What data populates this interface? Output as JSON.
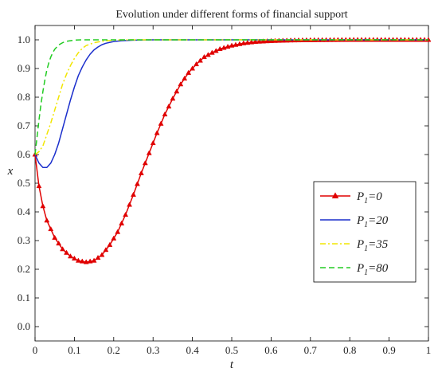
{
  "chart_data": {
    "type": "line",
    "title": "Evolution under different forms of financial support",
    "xlabel": "t",
    "ylabel": "x",
    "xlim": [
      0,
      1
    ],
    "ylim": [
      -0.05,
      1.05
    ],
    "xticks": [
      "0",
      "0.1",
      "0.2",
      "0.3",
      "0.4",
      "0.5",
      "0.6",
      "0.7",
      "0.8",
      "0.9",
      "1"
    ],
    "yticks": [
      "0.0",
      "0.1",
      "0.2",
      "0.3",
      "0.4",
      "0.5",
      "0.6",
      "0.7",
      "0.8",
      "0.9",
      "1.0"
    ],
    "legend_position": "right",
    "series": [
      {
        "legend_main": "P",
        "legend_sub": "1",
        "legend_rest": "=0",
        "color": "#e00000",
        "dash": "solid",
        "marker": "triangle",
        "x": [
          0,
          0.01,
          0.02,
          0.03,
          0.05,
          0.07,
          0.09,
          0.11,
          0.13,
          0.15,
          0.17,
          0.19,
          0.21,
          0.23,
          0.25,
          0.27,
          0.29,
          0.31,
          0.33,
          0.35,
          0.37,
          0.39,
          0.41,
          0.43,
          0.45,
          0.47,
          0.5,
          0.53,
          0.56,
          0.6,
          0.65,
          0.7,
          0.8,
          0.9,
          1.0
        ],
        "y": [
          0.6,
          0.49,
          0.42,
          0.37,
          0.31,
          0.27,
          0.245,
          0.23,
          0.225,
          0.23,
          0.25,
          0.285,
          0.33,
          0.39,
          0.46,
          0.535,
          0.605,
          0.675,
          0.74,
          0.795,
          0.845,
          0.885,
          0.915,
          0.94,
          0.955,
          0.968,
          0.98,
          0.988,
          0.993,
          0.996,
          0.998,
          0.999,
          1.0,
          1.0,
          1.0
        ]
      },
      {
        "legend_main": "P",
        "legend_sub": "1",
        "legend_rest": "=20",
        "color": "#1a2ecc",
        "dash": "solid",
        "marker": "none",
        "x": [
          0,
          0.01,
          0.02,
          0.03,
          0.04,
          0.05,
          0.06,
          0.07,
          0.08,
          0.09,
          0.1,
          0.11,
          0.12,
          0.13,
          0.14,
          0.15,
          0.16,
          0.17,
          0.18,
          0.2,
          0.22,
          0.25,
          0.3,
          0.4,
          1.0
        ],
        "y": [
          0.6,
          0.57,
          0.555,
          0.555,
          0.57,
          0.6,
          0.64,
          0.69,
          0.74,
          0.79,
          0.835,
          0.875,
          0.905,
          0.93,
          0.95,
          0.965,
          0.975,
          0.983,
          0.988,
          0.994,
          0.997,
          0.999,
          1.0,
          1.0,
          1.0
        ]
      },
      {
        "legend_main": "P",
        "legend_sub": "1",
        "legend_rest": "=35",
        "color": "#f2e600",
        "dash": "dashdot",
        "marker": "none",
        "x": [
          0,
          0.01,
          0.02,
          0.03,
          0.04,
          0.05,
          0.06,
          0.07,
          0.08,
          0.09,
          0.1,
          0.11,
          0.12,
          0.13,
          0.15,
          0.17,
          0.2,
          0.25,
          1.0
        ],
        "y": [
          0.6,
          0.61,
          0.63,
          0.67,
          0.71,
          0.755,
          0.8,
          0.845,
          0.88,
          0.91,
          0.935,
          0.955,
          0.97,
          0.98,
          0.99,
          0.995,
          0.999,
          1.0,
          1.0
        ]
      },
      {
        "legend_main": "P",
        "legend_sub": "1",
        "legend_rest": "=80",
        "color": "#22cc22",
        "dash": "dashed",
        "marker": "none",
        "x": [
          0,
          0.005,
          0.01,
          0.015,
          0.02,
          0.025,
          0.03,
          0.035,
          0.04,
          0.045,
          0.05,
          0.06,
          0.07,
          0.08,
          0.1,
          0.12,
          1.0
        ],
        "y": [
          0.6,
          0.66,
          0.72,
          0.775,
          0.82,
          0.86,
          0.895,
          0.92,
          0.94,
          0.955,
          0.967,
          0.982,
          0.99,
          0.995,
          0.999,
          1.0,
          1.0
        ]
      }
    ]
  }
}
